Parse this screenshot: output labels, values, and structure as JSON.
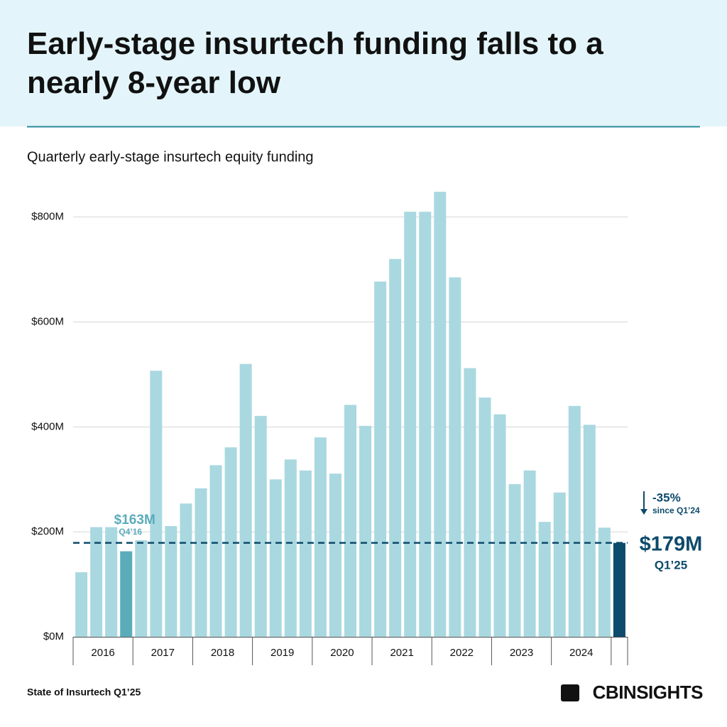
{
  "chart_data": {
    "type": "bar",
    "title": "Early-stage insurtech funding falls to a nearly 8-year low",
    "subtitle": "Quarterly early-stage insurtech equity funding",
    "year_groups": [
      "2016",
      "2017",
      "2018",
      "2019",
      "2020",
      "2021",
      "2022",
      "2023",
      "2024"
    ],
    "values": [
      123,
      209,
      209,
      163,
      184,
      507,
      211,
      254,
      283,
      327,
      361,
      520,
      421,
      300,
      338,
      317,
      380,
      311,
      442,
      402,
      677,
      720,
      810,
      810,
      848,
      685,
      512,
      456,
      424,
      291,
      317,
      219,
      275,
      440,
      404,
      208,
      179
    ],
    "value_labels": [
      null,
      null,
      null,
      "$163M",
      null,
      null,
      null,
      null,
      null,
      null,
      null,
      null,
      null,
      null,
      null,
      null,
      null,
      null,
      null,
      null,
      null,
      null,
      null,
      null,
      null,
      null,
      null,
      null,
      null,
      null,
      null,
      null,
      null,
      null,
      null,
      null,
      "$179M"
    ],
    "colors": [
      "#a9d8e0",
      "#a9d8e0",
      "#a9d8e0",
      "#5aacbb",
      "#a9d8e0",
      "#a9d8e0",
      "#a9d8e0",
      "#a9d8e0",
      "#a9d8e0",
      "#a9d8e0",
      "#a9d8e0",
      "#a9d8e0",
      "#a9d8e0",
      "#a9d8e0",
      "#a9d8e0",
      "#a9d8e0",
      "#a9d8e0",
      "#a9d8e0",
      "#a9d8e0",
      "#a9d8e0",
      "#a9d8e0",
      "#a9d8e0",
      "#a9d8e0",
      "#a9d8e0",
      "#a9d8e0",
      "#a9d8e0",
      "#a9d8e0",
      "#a9d8e0",
      "#a9d8e0",
      "#a9d8e0",
      "#a9d8e0",
      "#a9d8e0",
      "#a9d8e0",
      "#a9d8e0",
      "#a9d8e0",
      "#a9d8e0",
      "#0d4a6b"
    ],
    "annotations": [
      "Q4’16",
      "Q1’25",
      "-35%",
      "since Q1’24"
    ],
    "ylim": [
      0,
      855
    ],
    "yticks": [
      {
        "value": 0,
        "label": "$0M"
      },
      {
        "value": 200,
        "label": "$200M"
      },
      {
        "value": 400,
        "label": "$400M"
      },
      {
        "value": 600,
        "label": "$600M"
      },
      {
        "value": 800,
        "label": "$800M"
      }
    ],
    "grid": true,
    "source": "State of Insurtech Q1’25",
    "logo": "CBINSIGHTS"
  }
}
